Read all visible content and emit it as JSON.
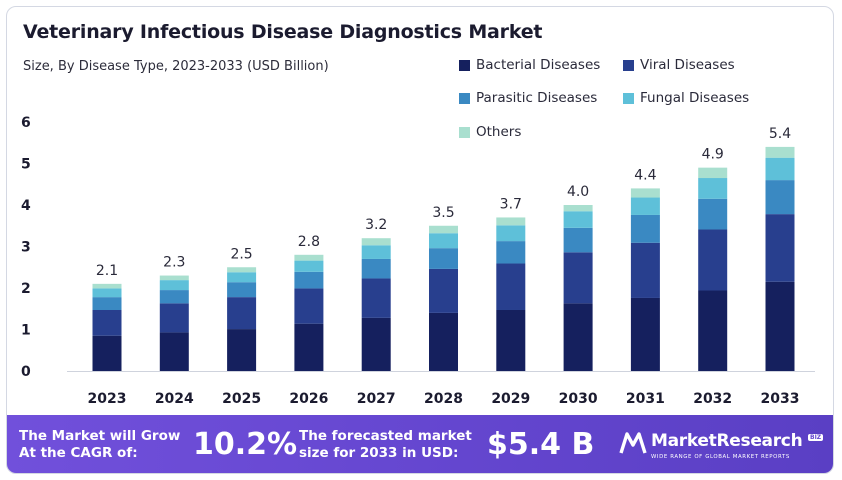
{
  "title": "Veterinary Infectious Disease Diagnostics Market",
  "subtitle": "Size, By Disease Type, 2023-2033 (USD Billion)",
  "colors": {
    "bacterial": "#15205e",
    "viral": "#283f8e",
    "parasitic": "#3a89c2",
    "fungal": "#5ec0d9",
    "others": "#a9dfcf",
    "banner": "#6446cf"
  },
  "chart_data": {
    "type": "bar",
    "stacked": true,
    "title": "Veterinary Infectious Disease Diagnostics Market",
    "subtitle": "Size, By Disease Type, 2023-2033 (USD Billion)",
    "categories": [
      "2023",
      "2024",
      "2025",
      "2026",
      "2027",
      "2028",
      "2029",
      "2030",
      "2031",
      "2032",
      "2033"
    ],
    "totals": [
      2.1,
      2.3,
      2.5,
      2.8,
      3.2,
      3.5,
      3.7,
      4.0,
      4.4,
      4.9,
      5.4
    ],
    "total_labels": [
      "2.1",
      "2.3",
      "2.5",
      "2.8",
      "3.2",
      "3.5",
      "3.7",
      "4.0",
      "4.4",
      "4.9",
      "5.4"
    ],
    "series": [
      {
        "name": "Bacterial Diseases",
        "color": "#15205e",
        "values": [
          0.85,
          0.93,
          1.01,
          1.14,
          1.28,
          1.4,
          1.47,
          1.63,
          1.76,
          1.94,
          2.15
        ]
      },
      {
        "name": "Viral Diseases",
        "color": "#283f8e",
        "values": [
          0.62,
          0.7,
          0.77,
          0.85,
          0.95,
          1.06,
          1.12,
          1.23,
          1.33,
          1.47,
          1.63
        ]
      },
      {
        "name": "Parasitic Diseases",
        "color": "#3a89c2",
        "values": [
          0.31,
          0.32,
          0.36,
          0.4,
          0.47,
          0.5,
          0.54,
          0.59,
          0.67,
          0.74,
          0.82
        ]
      },
      {
        "name": "Fungal Diseases",
        "color": "#5ec0d9",
        "values": [
          0.21,
          0.24,
          0.24,
          0.27,
          0.33,
          0.36,
          0.38,
          0.4,
          0.42,
          0.5,
          0.54
        ]
      },
      {
        "name": "Others",
        "color": "#a9dfcf",
        "values": [
          0.11,
          0.11,
          0.12,
          0.14,
          0.17,
          0.18,
          0.19,
          0.15,
          0.22,
          0.25,
          0.26
        ]
      }
    ],
    "yticks": [
      "0",
      "1",
      "2",
      "3",
      "4",
      "5",
      "6"
    ],
    "ylim": [
      0,
      6
    ],
    "xlabel": "",
    "ylabel": "",
    "legend_position": "top-right",
    "grid": false
  },
  "banner": {
    "cagr_label": "The Market will Grow At the CAGR of:",
    "cagr_value": "10.2%",
    "forecast_label": "The forecasted market size for 2033 in USD:",
    "forecast_value": "$5.4 B",
    "logo_name": "MarketResearch",
    "logo_badge": "BIZ",
    "logo_tagline": "WIDE RANGE OF GLOBAL MARKET REPORTS"
  }
}
